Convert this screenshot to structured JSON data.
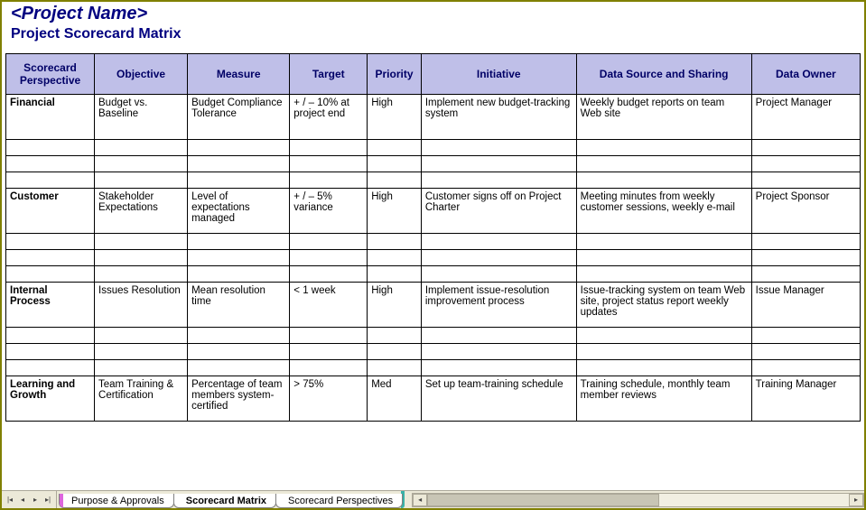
{
  "title_main": "<Project Name>",
  "title_sub": "Project Scorecard Matrix",
  "colors": {
    "heading_text": "#000080",
    "header_bg": "#bfbfe8",
    "header_text": "#000066",
    "border": "#000000",
    "frame_border": "#808000",
    "tabbar_bg": "#ece9d8",
    "tab_accent_pink": "#dd66dd",
    "tab_accent_teal": "#39b2a8"
  },
  "table": {
    "columns": [
      "Scorecard Perspective",
      "Objective",
      "Measure",
      "Target",
      "Priority",
      "Initiative",
      "Data Source and Sharing",
      "Data Owner"
    ],
    "sections": [
      {
        "perspective": "Financial",
        "main": {
          "objective": "Budget vs. Baseline",
          "measure": "Budget Compliance Tolerance",
          "target": "+ / – 10% at project end",
          "priority": "High",
          "initiative": "Implement new budget-tracking system",
          "datasource": "Weekly budget reports on team Web site",
          "dataowner": "Project Manager"
        },
        "extra_rows": 3
      },
      {
        "perspective": "Customer",
        "main": {
          "objective": "Stakeholder Expectations",
          "measure": "Level of expectations managed",
          "target": "+ / – 5% variance",
          "priority": "High",
          "initiative": "Customer signs off on Project Charter",
          "datasource": "Meeting minutes from weekly customer sessions, weekly e-mail",
          "dataowner": "Project Sponsor"
        },
        "extra_rows": 3
      },
      {
        "perspective": "Internal Process",
        "main": {
          "objective": "Issues Resolution",
          "measure": "Mean resolution time",
          "target": "< 1 week",
          "priority": "High",
          "initiative": "Implement issue-resolution improvement process",
          "datasource": "Issue-tracking system on team Web site, project status report weekly updates",
          "dataowner": "Issue Manager"
        },
        "extra_rows": 3
      },
      {
        "perspective": "Learning and Growth",
        "main": {
          "objective": "Team Training & Certification",
          "measure": "Percentage of team members system-certified",
          "target": "> 75%",
          "priority": "Med",
          "initiative": "Set up team-training schedule",
          "datasource": "Training schedule, monthly team member reviews",
          "dataowner": "Training Manager"
        },
        "extra_rows": 0
      }
    ]
  },
  "tabs": {
    "items": [
      {
        "label": "Purpose & Approvals",
        "active": false
      },
      {
        "label": "Scorecard Matrix",
        "active": true
      },
      {
        "label": "Scorecard Perspectives",
        "active": false
      }
    ]
  }
}
